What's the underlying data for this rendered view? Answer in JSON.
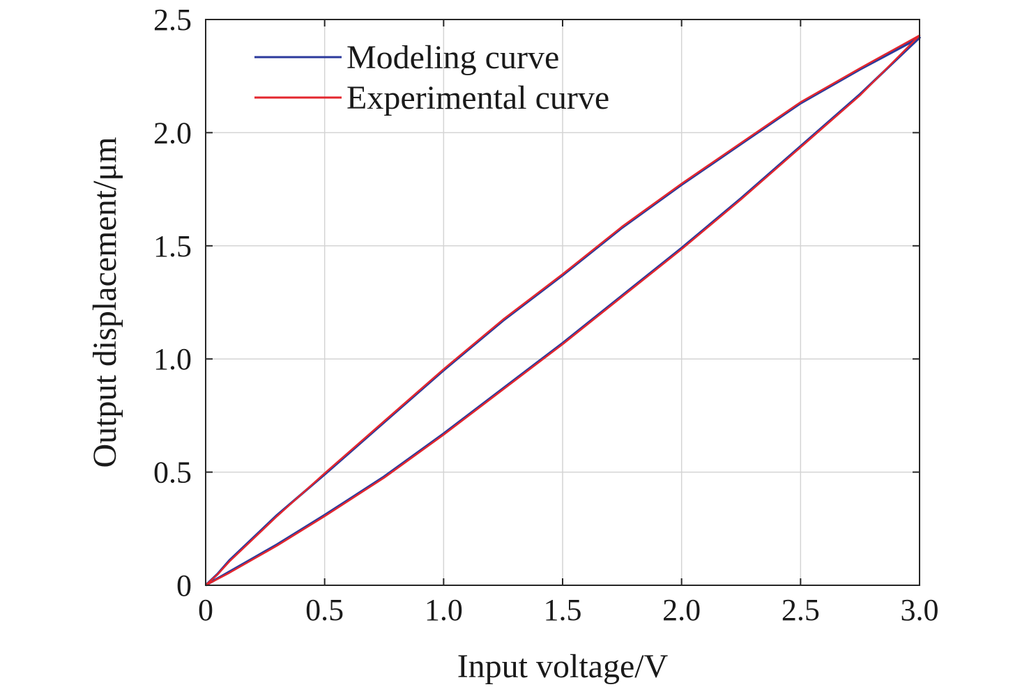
{
  "chart_data": {
    "type": "line",
    "xlabel": "Input voltage/V",
    "ylabel": "Output displacement/μm",
    "xlim": [
      0,
      3
    ],
    "ylim": [
      0,
      2.5
    ],
    "xticks": [
      0,
      0.5,
      1.0,
      1.5,
      2.0,
      2.5,
      3.0
    ],
    "xtick_labels": [
      "0",
      "0.5",
      "1.0",
      "1.5",
      "2.0",
      "2.5",
      "3.0"
    ],
    "yticks": [
      0,
      0.5,
      1.0,
      1.5,
      2.0,
      2.5
    ],
    "ytick_labels": [
      "0",
      "0.5",
      "1.0",
      "1.5",
      "2.0",
      "2.5"
    ],
    "grid": true,
    "legend_position": "top-left",
    "series": [
      {
        "name": "Modeling curve",
        "color": "#2b3a9c",
        "x": [
          0,
          0.1,
          0.2,
          0.3,
          0.5,
          0.75,
          1.0,
          1.25,
          1.5,
          1.75,
          2.0,
          2.25,
          2.5,
          2.75,
          3.0,
          2.75,
          2.5,
          2.25,
          2.0,
          1.75,
          1.5,
          1.25,
          1.0,
          0.75,
          0.5,
          0.3,
          0.2,
          0.1,
          0.05,
          0
        ],
        "y": [
          0,
          0.06,
          0.12,
          0.18,
          0.31,
          0.48,
          0.67,
          0.87,
          1.07,
          1.28,
          1.49,
          1.71,
          1.94,
          2.17,
          2.42,
          2.28,
          2.13,
          1.95,
          1.77,
          1.58,
          1.37,
          1.17,
          0.95,
          0.72,
          0.49,
          0.31,
          0.21,
          0.11,
          0.05,
          0
        ]
      },
      {
        "name": "Experimental curve",
        "color": "#e3262d",
        "x": [
          0,
          0.1,
          0.2,
          0.3,
          0.5,
          0.75,
          1.0,
          1.25,
          1.5,
          1.75,
          2.0,
          2.25,
          2.5,
          2.75,
          3.0,
          2.75,
          2.5,
          2.25,
          2.0,
          1.75,
          1.5,
          1.25,
          1.0,
          0.75,
          0.5,
          0.3,
          0.2,
          0.1,
          0.05,
          0
        ],
        "y": [
          0,
          0.055,
          0.115,
          0.175,
          0.305,
          0.475,
          0.665,
          0.865,
          1.065,
          1.275,
          1.485,
          1.705,
          1.935,
          2.165,
          2.43,
          2.285,
          2.135,
          1.955,
          1.775,
          1.585,
          1.375,
          1.175,
          0.955,
          0.725,
          0.495,
          0.305,
          0.205,
          0.105,
          0.048,
          0
        ]
      }
    ]
  }
}
